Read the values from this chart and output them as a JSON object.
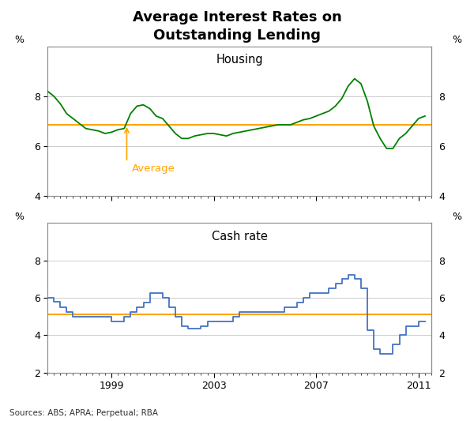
{
  "title": "Average Interest Rates on\nOutstanding Lending",
  "subtitle_housing": "Housing",
  "subtitle_cash": "Cash rate",
  "source": "Sources: ABS; APRA; Perpetual; RBA",
  "avg_label": "Average",
  "housing_color": "#008000",
  "cash_color": "#4472c4",
  "avg_color": "#FFA500",
  "housing_avg": 6.85,
  "cash_avg": 5.1,
  "housing_ylim": [
    4,
    10
  ],
  "cash_ylim": [
    2,
    10
  ],
  "housing_yticks": [
    4,
    6,
    8
  ],
  "cash_yticks": [
    2,
    4,
    6,
    8
  ],
  "housing_data": {
    "dates": [
      1996.5,
      1996.75,
      1997.0,
      1997.25,
      1997.5,
      1997.75,
      1998.0,
      1998.25,
      1998.5,
      1998.75,
      1999.0,
      1999.25,
      1999.5,
      1999.75,
      2000.0,
      2000.25,
      2000.5,
      2000.75,
      2001.0,
      2001.25,
      2001.5,
      2001.75,
      2002.0,
      2002.25,
      2002.5,
      2002.75,
      2003.0,
      2003.25,
      2003.5,
      2003.75,
      2004.0,
      2004.25,
      2004.5,
      2004.75,
      2005.0,
      2005.25,
      2005.5,
      2005.75,
      2006.0,
      2006.25,
      2006.5,
      2006.75,
      2007.0,
      2007.25,
      2007.5,
      2007.75,
      2008.0,
      2008.25,
      2008.5,
      2008.75,
      2009.0,
      2009.25,
      2009.5,
      2009.75,
      2010.0,
      2010.25,
      2010.5,
      2010.75,
      2011.0,
      2011.25
    ],
    "values": [
      8.2,
      8.0,
      7.7,
      7.3,
      7.1,
      6.9,
      6.7,
      6.65,
      6.6,
      6.5,
      6.55,
      6.65,
      6.7,
      7.3,
      7.6,
      7.65,
      7.5,
      7.2,
      7.1,
      6.8,
      6.5,
      6.3,
      6.3,
      6.4,
      6.45,
      6.5,
      6.5,
      6.45,
      6.4,
      6.5,
      6.55,
      6.6,
      6.65,
      6.7,
      6.75,
      6.8,
      6.85,
      6.85,
      6.85,
      6.95,
      7.05,
      7.1,
      7.2,
      7.3,
      7.4,
      7.6,
      7.9,
      8.4,
      8.7,
      8.5,
      7.8,
      6.8,
      6.3,
      5.9,
      5.9,
      6.3,
      6.5,
      6.8,
      7.1,
      7.2
    ]
  },
  "cash_data": {
    "dates": [
      1996.5,
      1996.75,
      1997.0,
      1997.25,
      1997.5,
      1997.75,
      1998.0,
      1998.25,
      1998.5,
      1998.75,
      1999.0,
      1999.25,
      1999.5,
      1999.75,
      2000.0,
      2000.25,
      2000.5,
      2000.75,
      2001.0,
      2001.25,
      2001.5,
      2001.75,
      2002.0,
      2002.25,
      2002.5,
      2002.75,
      2003.0,
      2003.25,
      2003.5,
      2003.75,
      2004.0,
      2004.25,
      2004.5,
      2004.75,
      2005.0,
      2005.25,
      2005.5,
      2005.75,
      2006.0,
      2006.25,
      2006.5,
      2006.75,
      2007.0,
      2007.25,
      2007.5,
      2007.75,
      2008.0,
      2008.25,
      2008.5,
      2008.75,
      2009.0,
      2009.25,
      2009.5,
      2009.75,
      2010.0,
      2010.25,
      2010.5,
      2010.75,
      2011.0,
      2011.25
    ],
    "values": [
      6.0,
      5.8,
      5.5,
      5.25,
      5.0,
      5.0,
      5.0,
      5.0,
      5.0,
      5.0,
      4.75,
      4.75,
      5.0,
      5.25,
      5.5,
      5.75,
      6.25,
      6.25,
      6.0,
      5.5,
      5.0,
      4.5,
      4.35,
      4.35,
      4.5,
      4.75,
      4.75,
      4.75,
      4.75,
      5.0,
      5.25,
      5.25,
      5.25,
      5.25,
      5.25,
      5.25,
      5.25,
      5.5,
      5.5,
      5.75,
      6.0,
      6.25,
      6.25,
      6.25,
      6.5,
      6.75,
      7.0,
      7.25,
      7.0,
      6.5,
      4.25,
      3.25,
      3.0,
      3.0,
      3.5,
      4.0,
      4.5,
      4.5,
      4.75,
      4.75
    ]
  },
  "xmin": 1996.5,
  "xmax": 2011.5,
  "xticks": [
    1999,
    2003,
    2007,
    2011
  ],
  "background_color": "#ffffff",
  "grid_color": "#cccccc",
  "spine_color": "#888888"
}
